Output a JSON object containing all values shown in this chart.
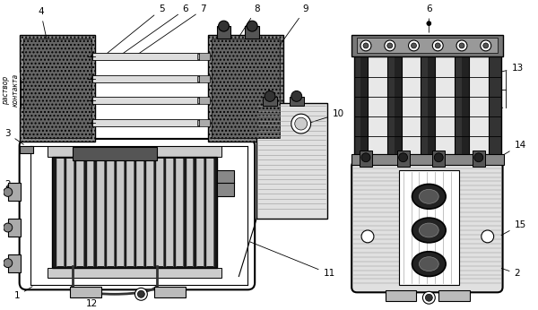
{
  "bg_color": "#ffffff",
  "fig_width": 6.0,
  "fig_height": 3.46,
  "dpi": 100,
  "label_fontsize": 7.5,
  "label_color": "#000000",
  "arrow_lw": 0.6,
  "line_color": "#000000",
  "gray_dark": "#2a2a2a",
  "gray_mid": "#888888",
  "gray_light": "#cccccc",
  "gray_very_light": "#e8e8e8",
  "hatch_dot_color": "#555555"
}
